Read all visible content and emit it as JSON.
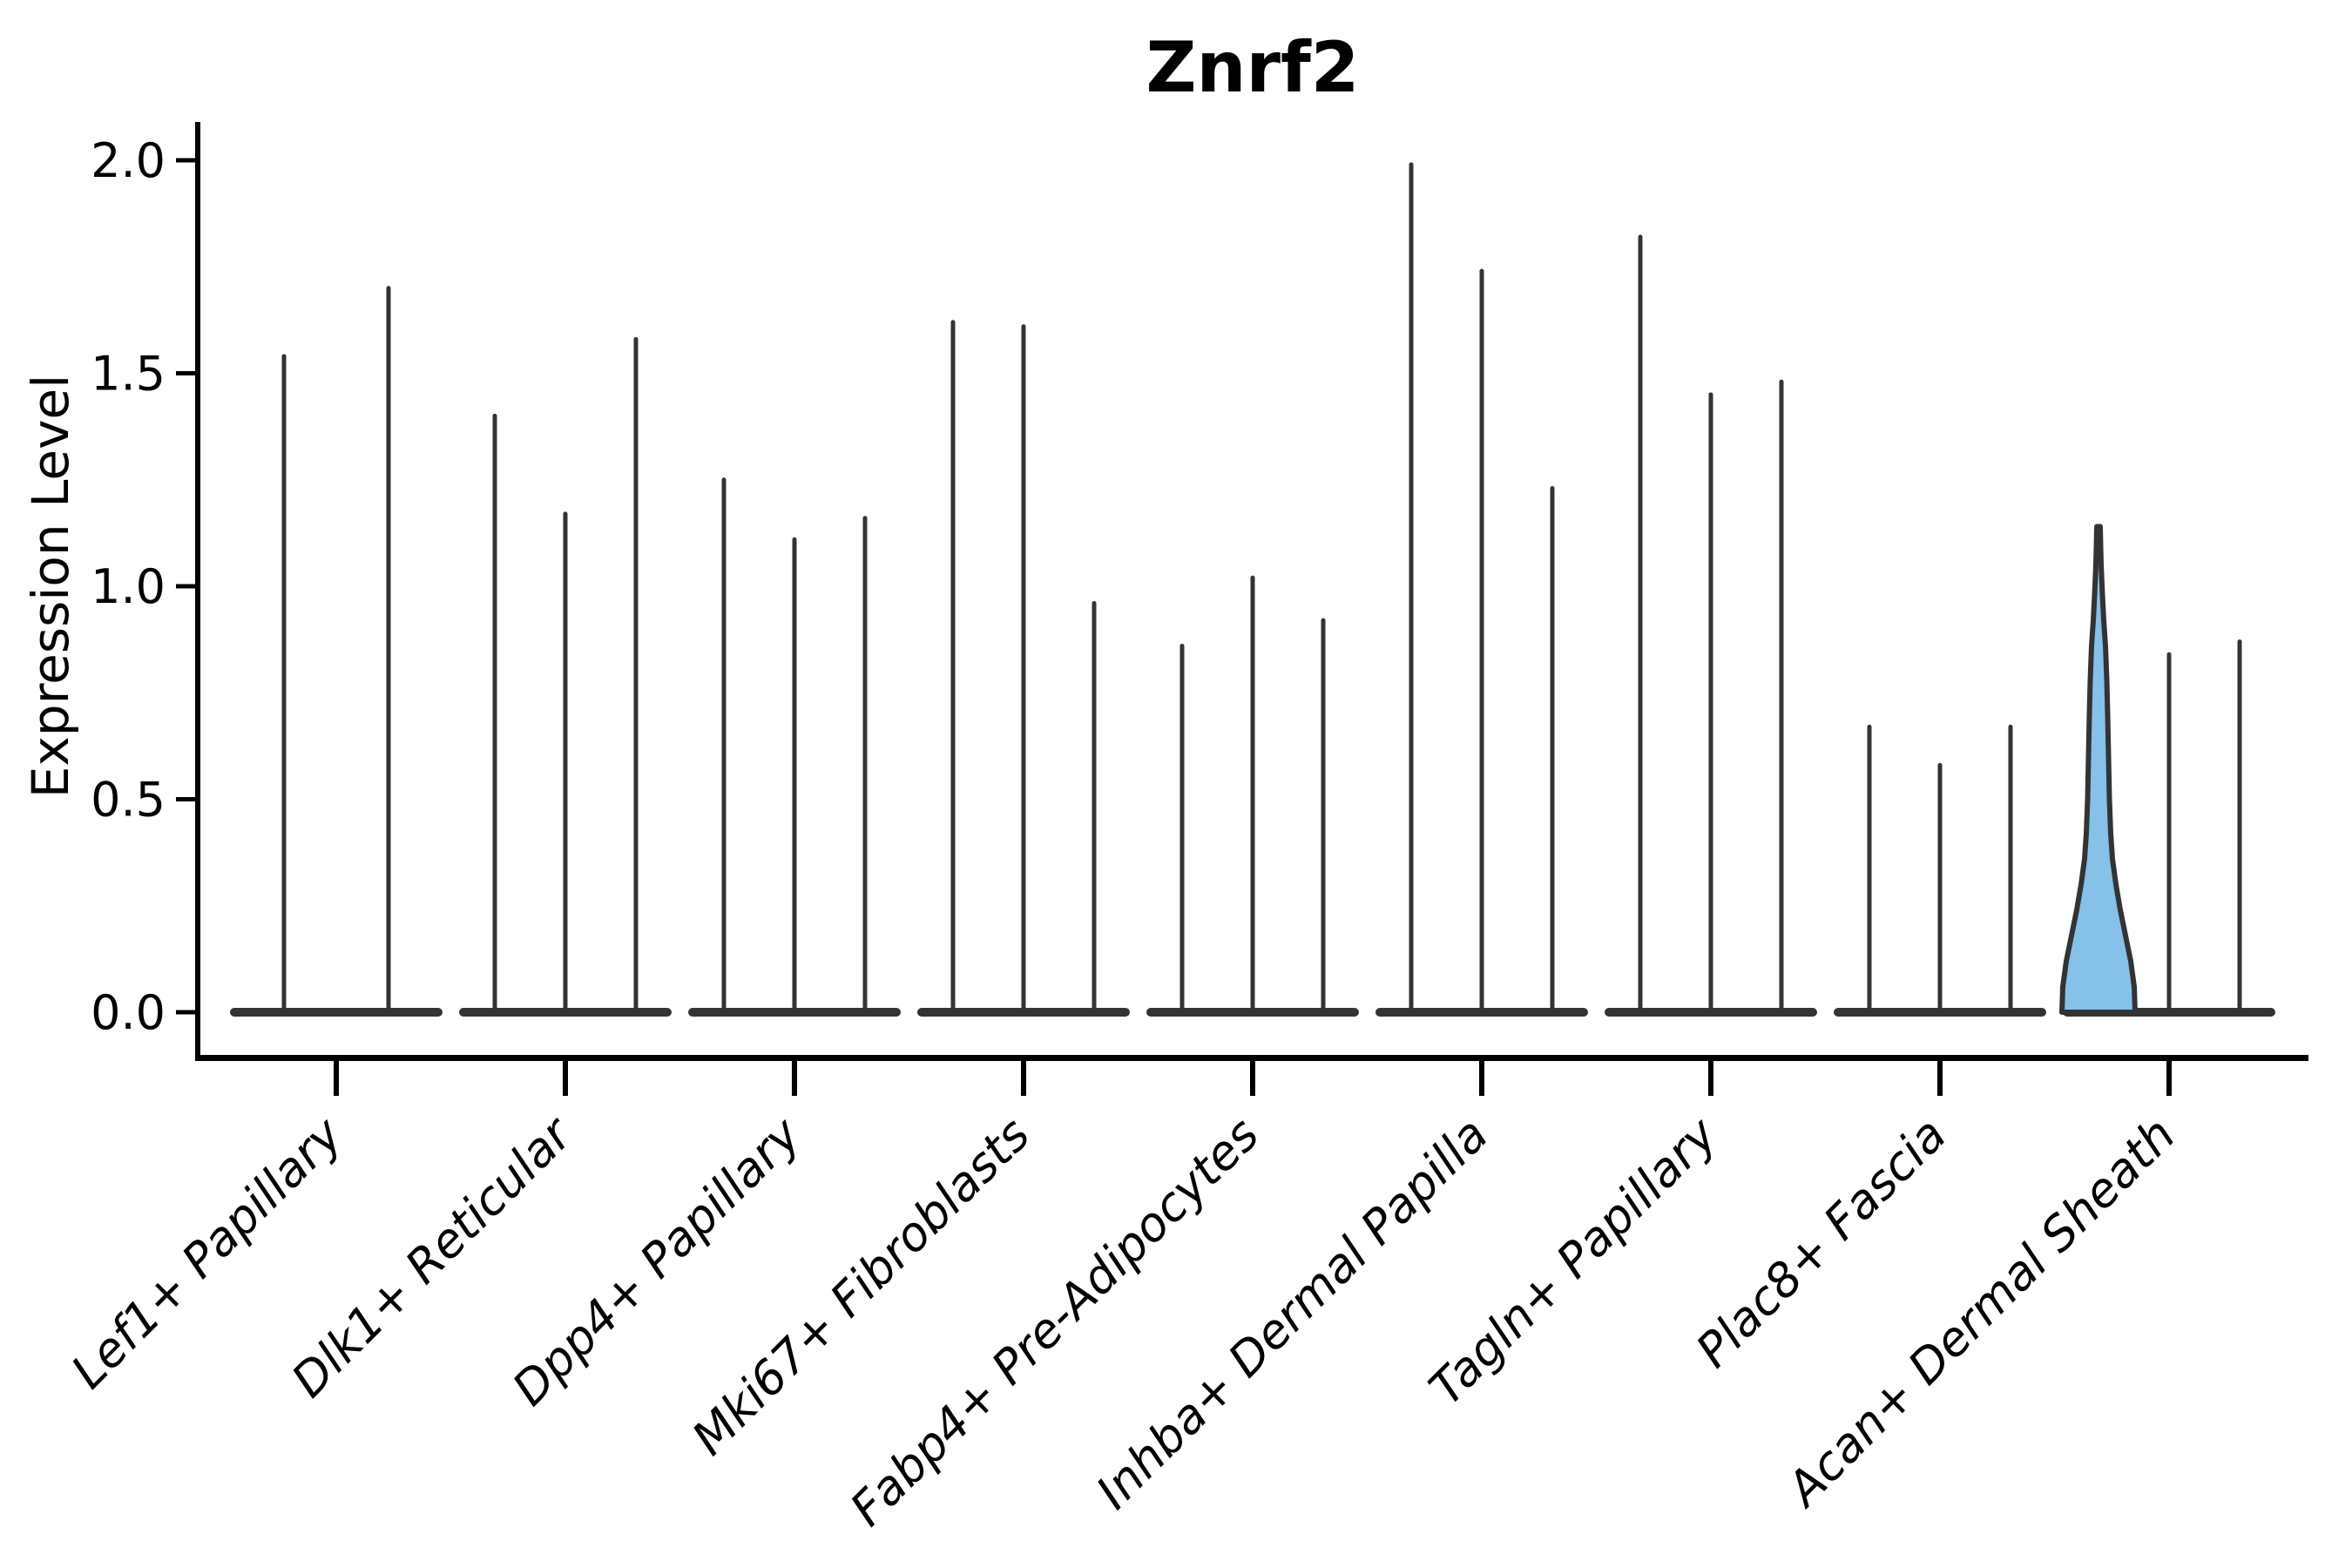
{
  "chart_data": {
    "type": "violin",
    "title": "Znrf2",
    "xlabel": "",
    "ylabel": "Expression Level",
    "yticks": [
      0.0,
      0.5,
      1.0,
      1.5,
      2.0
    ],
    "ylim": [
      -0.05,
      2.09
    ],
    "grid": false,
    "legend": "none",
    "groups": [
      {
        "label": "Lef1+ Papillary",
        "violins": [
          {
            "max": 1.54
          },
          {
            "max": 1.7
          }
        ]
      },
      {
        "label": "Dlk1+ Reticular",
        "violins": [
          {
            "max": 1.4
          },
          {
            "max": 1.17
          },
          {
            "max": 1.58
          }
        ]
      },
      {
        "label": "Dpp4+ Papillary",
        "violins": [
          {
            "max": 1.25
          },
          {
            "max": 1.11
          },
          {
            "max": 1.16
          }
        ]
      },
      {
        "label": "Mki67+ Fibroblasts",
        "violins": [
          {
            "max": 1.62
          },
          {
            "max": 1.61
          },
          {
            "max": 0.96
          }
        ]
      },
      {
        "label": "Fabp4+ Pre-Adipocytes",
        "violins": [
          {
            "max": 0.86
          },
          {
            "max": 1.02
          },
          {
            "max": 0.92
          }
        ]
      },
      {
        "label": "Inhba+ Dermal Papilla",
        "violins": [
          {
            "max": 1.99
          },
          {
            "max": 1.74
          },
          {
            "max": 1.23
          }
        ]
      },
      {
        "label": "Tagln+ Papillary",
        "violins": [
          {
            "max": 1.82
          },
          {
            "max": 1.45
          },
          {
            "max": 1.48
          }
        ]
      },
      {
        "label": "Plac8+ Fascia",
        "violins": [
          {
            "max": 0.67
          },
          {
            "max": 0.58
          },
          {
            "max": 0.67
          }
        ]
      },
      {
        "label": "Acan+ Dermal Sheath",
        "violins": [
          {
            "max": 1.14,
            "highlight": true
          },
          {
            "max": 0.84
          },
          {
            "max": 0.87
          }
        ]
      }
    ],
    "highlight_profile": [
      [
        0.0,
        42
      ],
      [
        0.06,
        41
      ],
      [
        0.12,
        37
      ],
      [
        0.18,
        31
      ],
      [
        0.24,
        25
      ],
      [
        0.3,
        20
      ],
      [
        0.36,
        16
      ],
      [
        0.42,
        14
      ],
      [
        0.5,
        12.5
      ],
      [
        0.6,
        11.5
      ],
      [
        0.7,
        10.5
      ],
      [
        0.78,
        9.5
      ],
      [
        0.86,
        8
      ],
      [
        0.92,
        6
      ],
      [
        0.98,
        4.5
      ],
      [
        1.05,
        3
      ],
      [
        1.1,
        2.4
      ],
      [
        1.14,
        2
      ]
    ],
    "colors": {
      "violin_stroke": "#333333",
      "highlight_fill": "#85C1E9",
      "axis": "#000000",
      "text": "#000000",
      "background": "#ffffff"
    }
  }
}
